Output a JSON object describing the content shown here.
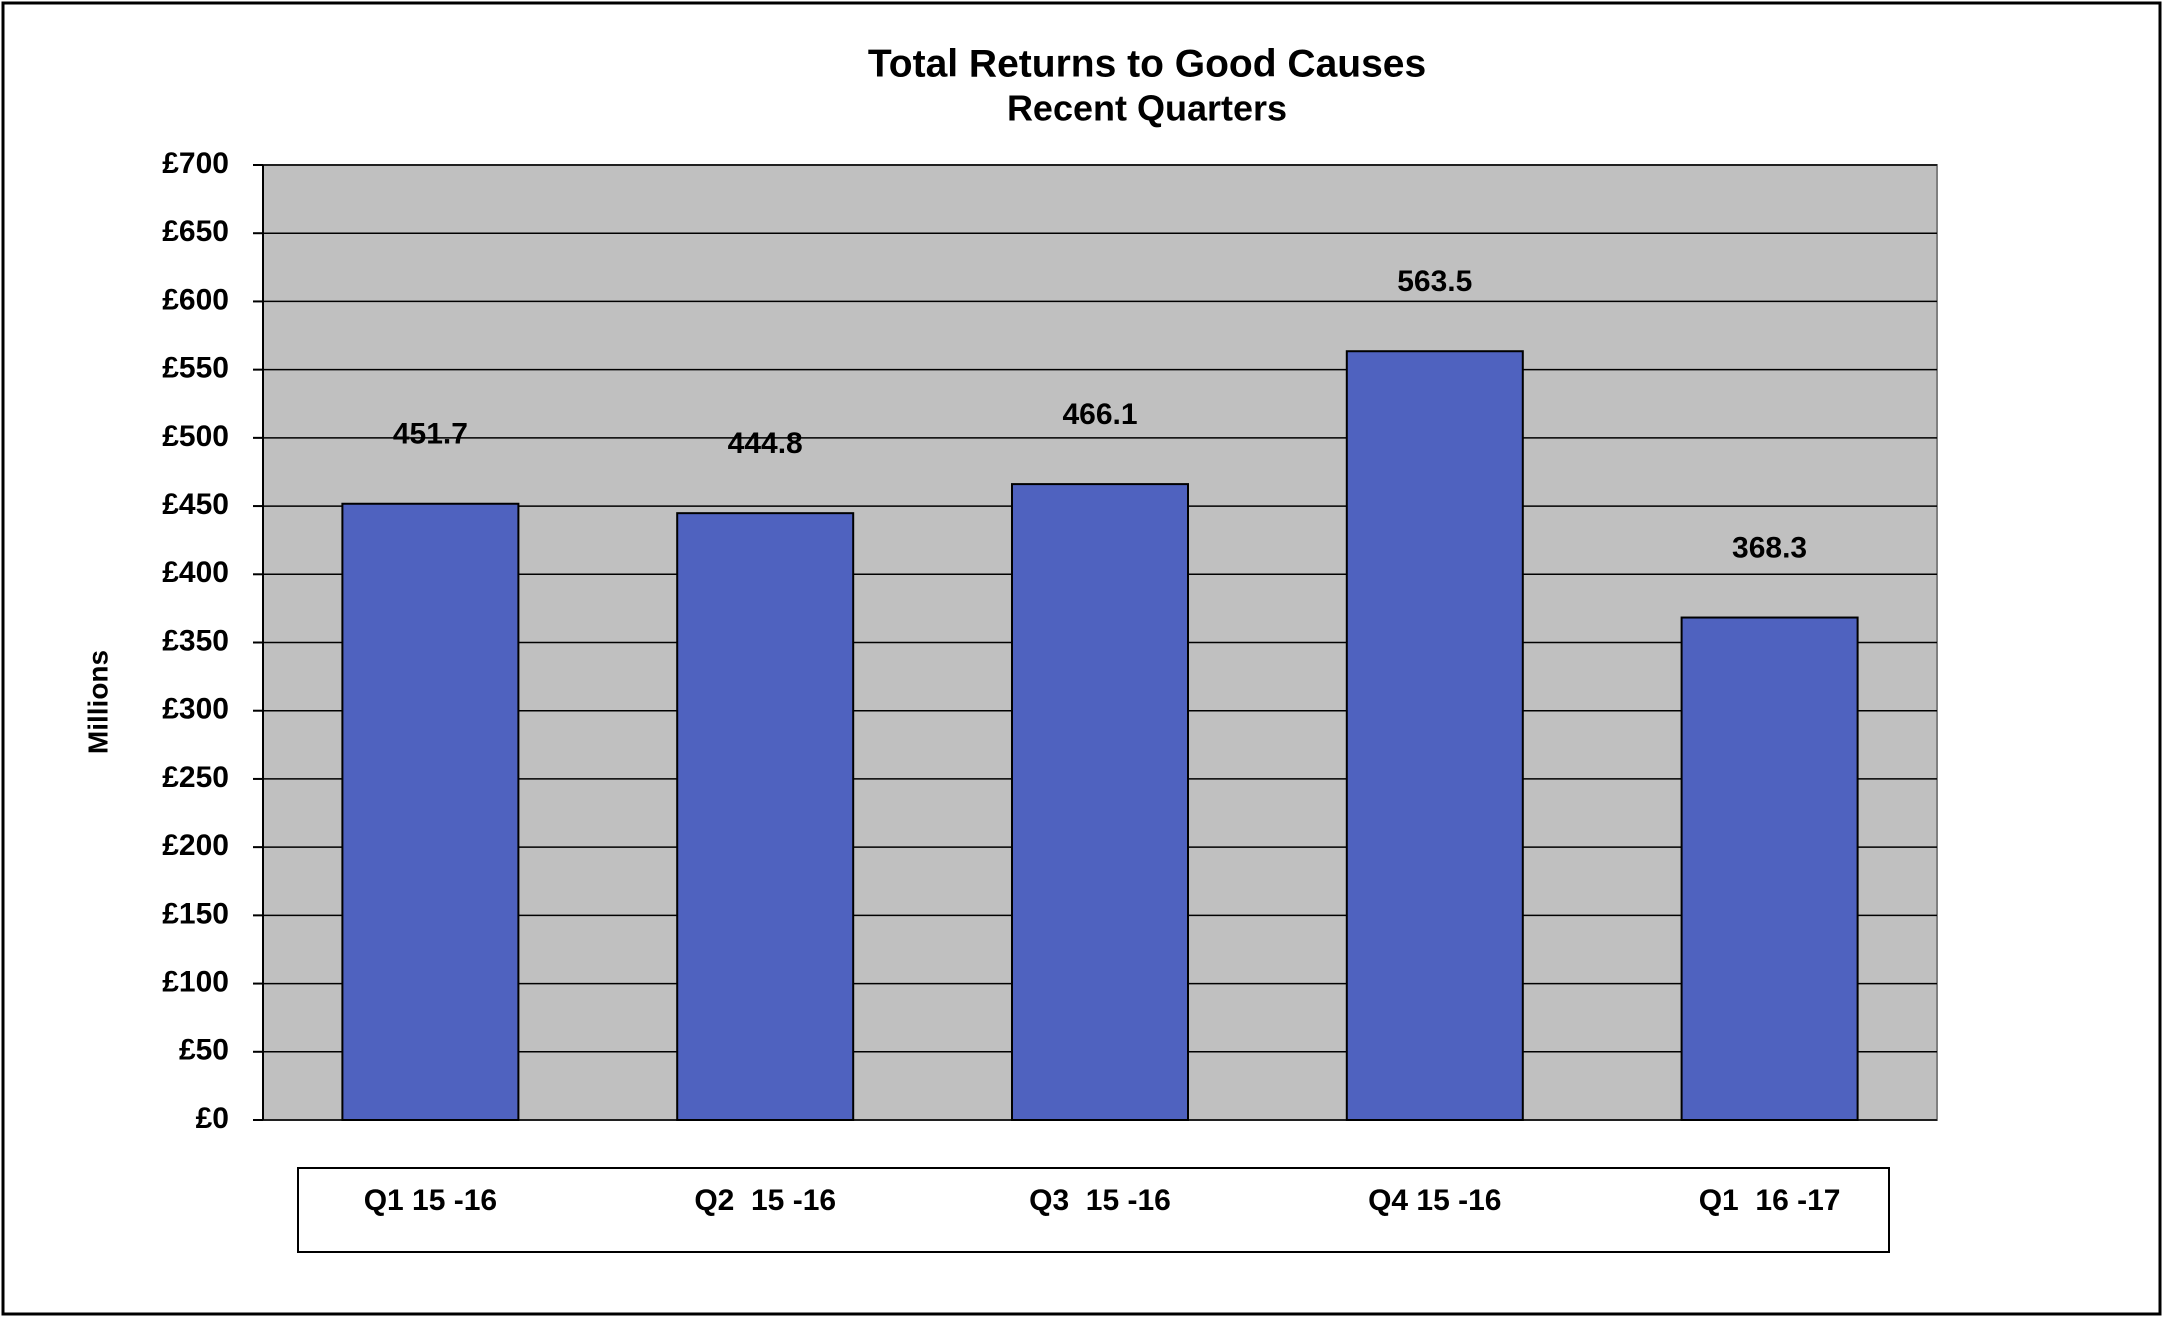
{
  "chart_data": {
    "type": "bar",
    "title": "Total Returns to Good Causes",
    "subtitle": "Recent Quarters",
    "y_label": "Millions",
    "categories": [
      "Q1 15 -16",
      "Q2  15 -16",
      "Q3  15 -16",
      "Q4 15 -16",
      "Q1  16 -17"
    ],
    "values": [
      451.7,
      444.8,
      466.1,
      563.5,
      368.3
    ],
    "color": "#4f62bf",
    "ylim": [
      0,
      700
    ],
    "yticks": [
      {
        "value": 0,
        "label": "£0"
      },
      {
        "value": 50,
        "label": "£50"
      },
      {
        "value": 100,
        "label": "£100"
      },
      {
        "value": 150,
        "label": "£150"
      },
      {
        "value": 200,
        "label": "£200"
      },
      {
        "value": 250,
        "label": "£250"
      },
      {
        "value": 300,
        "label": "£300"
      },
      {
        "value": 350,
        "label": "£350"
      },
      {
        "value": 400,
        "label": "£400"
      },
      {
        "value": 450,
        "label": "£450"
      },
      {
        "value": 500,
        "label": "£500"
      },
      {
        "value": 550,
        "label": "£550"
      },
      {
        "value": 600,
        "label": "£600"
      },
      {
        "value": 650,
        "label": "£650"
      },
      {
        "value": 700,
        "label": "£700"
      }
    ],
    "grid": true
  }
}
